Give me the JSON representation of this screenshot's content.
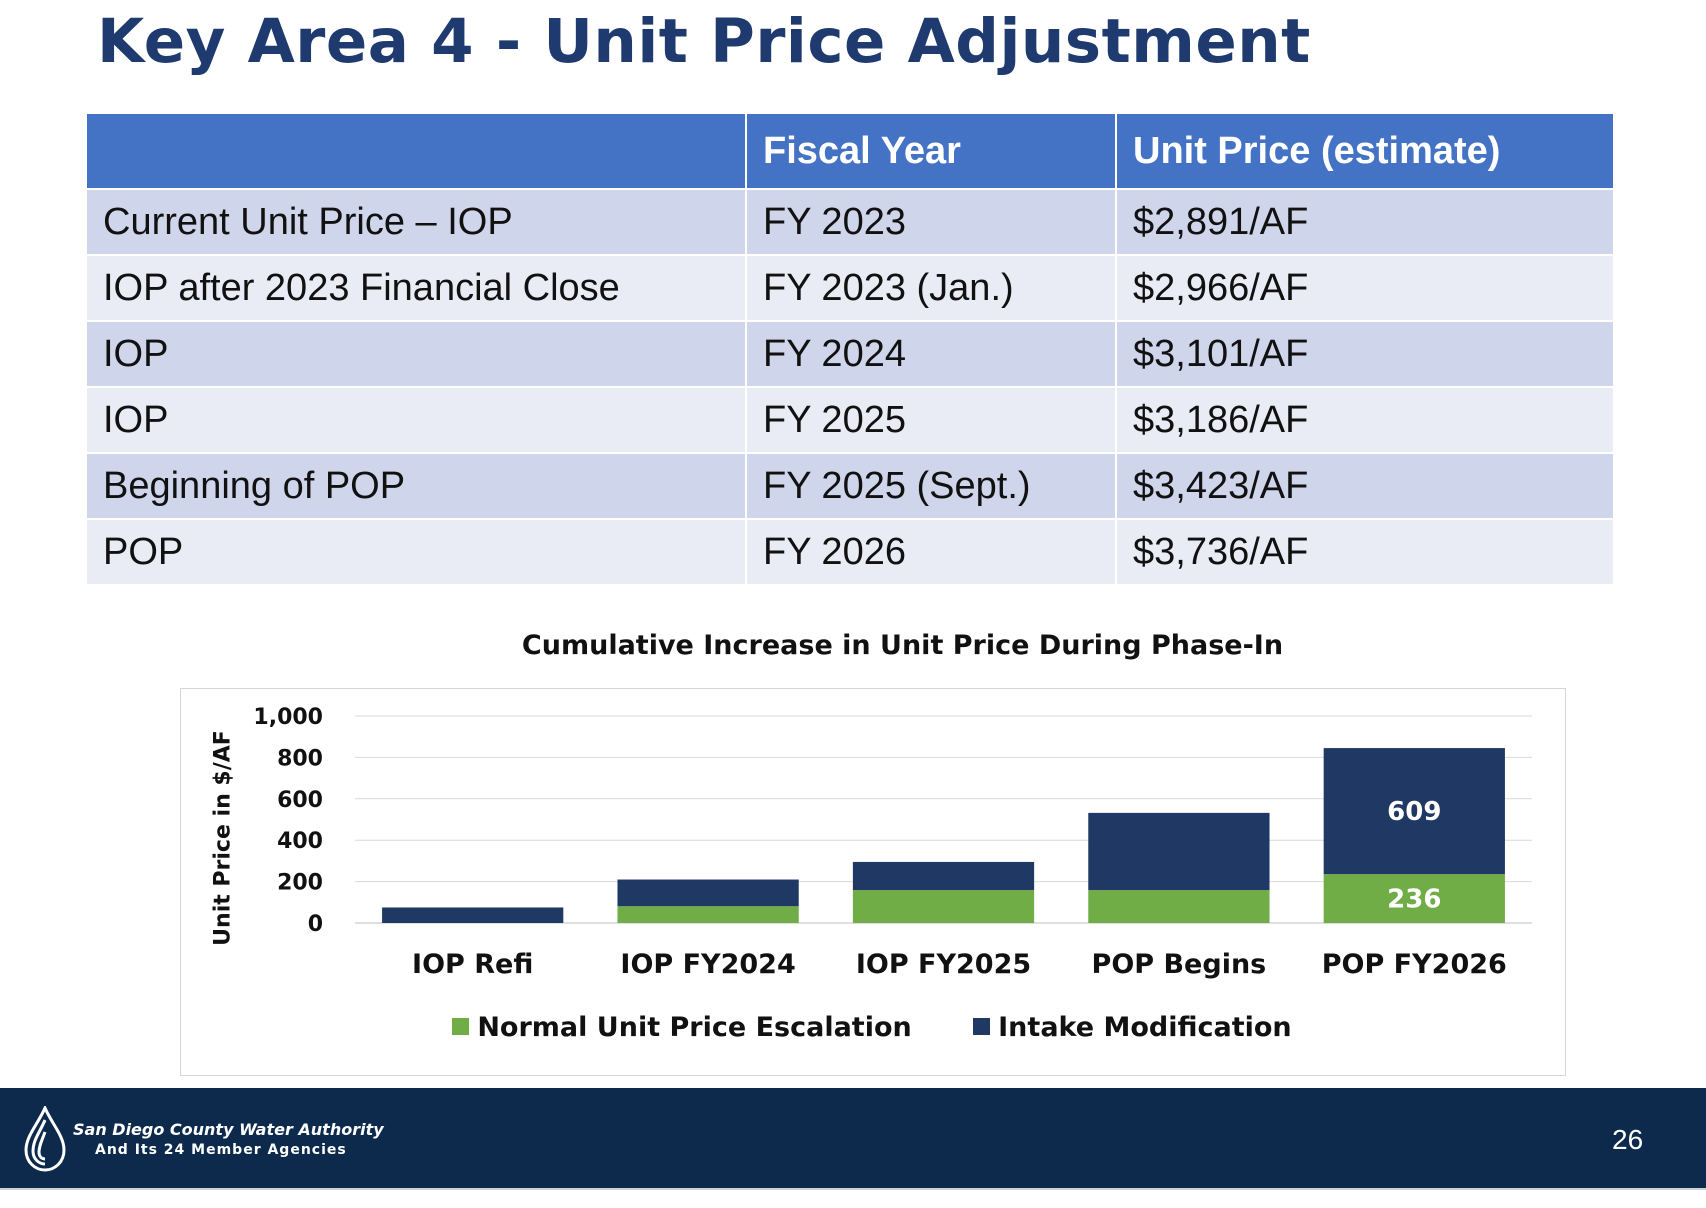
{
  "slide": {
    "title": "Key Area 4 - Unit Price Adjustment",
    "page_number": "26"
  },
  "table": {
    "headers": [
      "",
      "Fiscal Year",
      "Unit Price (estimate)"
    ],
    "rows": [
      [
        "Current Unit Price – IOP",
        "FY 2023",
        "$2,891/AF"
      ],
      [
        "IOP after 2023 Financial Close",
        "FY 2023 (Jan.)",
        "$2,966/AF"
      ],
      [
        "IOP",
        "FY 2024",
        "$3,101/AF"
      ],
      [
        "IOP",
        "FY 2025",
        "$3,186/AF"
      ],
      [
        "Beginning of POP",
        "FY 2025 (Sept.)",
        "$3,423/AF"
      ],
      [
        "POP",
        "FY 2026",
        "$3,736/AF"
      ]
    ]
  },
  "chart_data": {
    "type": "bar",
    "stacked": true,
    "title": "Cumulative Increase in Unit Price During Phase-In",
    "xlabel": "",
    "ylabel": "Unit Price in $/AF",
    "ylim": [
      0,
      1000
    ],
    "yticks": [
      0,
      200,
      400,
      600,
      800,
      1000
    ],
    "ytick_labels": [
      "0",
      "200",
      "400",
      "600",
      "800",
      "1,000"
    ],
    "categories": [
      "IOP Refi",
      "IOP FY2024",
      "IOP FY2025",
      "POP Begins",
      "POP FY2026"
    ],
    "series": [
      {
        "name": "Normal Unit Price Escalation",
        "color": "#70ad47",
        "values": [
          0,
          81,
          159,
          159,
          236
        ]
      },
      {
        "name": "Intake Modification",
        "color": "#203864",
        "values": [
          75,
          129,
          136,
          373,
          609
        ]
      }
    ],
    "data_labels": [
      {
        "series": 0,
        "category": 4,
        "text": "236"
      },
      {
        "series": 1,
        "category": 4,
        "text": "609"
      }
    ],
    "grid": true,
    "legend": "bottom"
  },
  "footer": {
    "org_name": "San Diego County Water Authority",
    "org_sub": "And Its 24 Member Agencies",
    "colors": {
      "band": "#0d2a4d",
      "text": "#ffffff"
    },
    "logo_icon": "water-drop-logo-icon"
  },
  "colors": {
    "title": "#1e3a6e",
    "table_header": "#4472c4",
    "row_odd": "#cfd5ea",
    "row_even": "#e9ebf5"
  }
}
